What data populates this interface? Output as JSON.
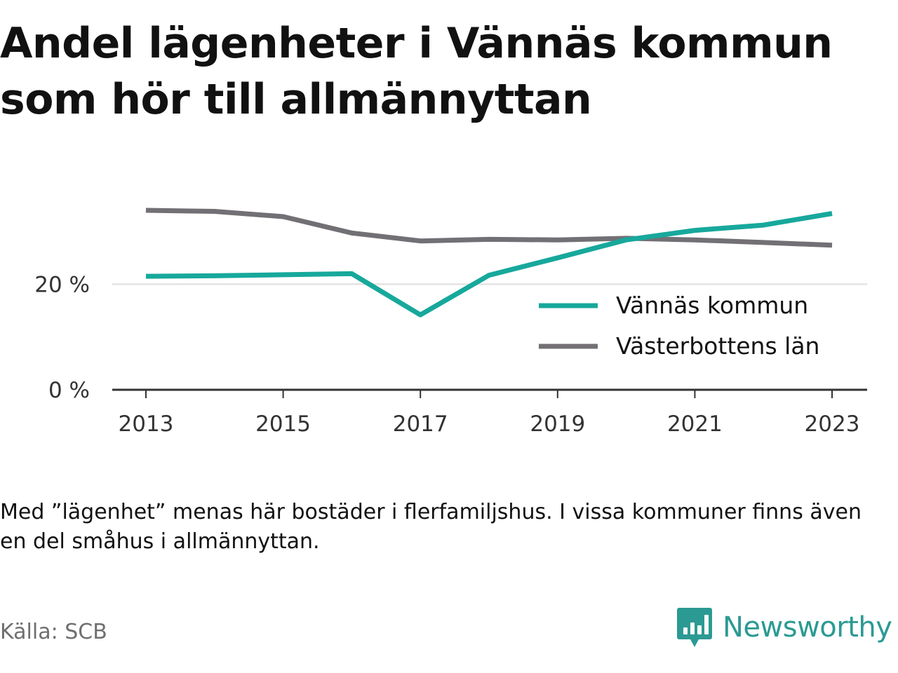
{
  "title": "Andel lägenheter i Vännäs kommun som hör till allmännyttan",
  "note": "Med ”lägenhet” menas här bostäder i flerfamiljshus. I vissa kommuner finns även en del småhus i allmännyttan.",
  "source": "Källa: SCB",
  "brand": {
    "name": "Newsworthy",
    "icon": "newsworthy-logo-icon",
    "color": "#2b9a93"
  },
  "chart_data": {
    "type": "line",
    "title": "Andel lägenheter i Vännäs kommun som hör till allmännyttan",
    "x": [
      2013,
      2014,
      2015,
      2016,
      2017,
      2018,
      2019,
      2020,
      2021,
      2022,
      2023
    ],
    "x_ticks": [
      "2013",
      "2015",
      "2017",
      "2019",
      "2021",
      "2023"
    ],
    "y_ticks": [
      {
        "value": 0,
        "label": "0 %"
      },
      {
        "value": 20,
        "label": "20 %"
      }
    ],
    "ylim": [
      0,
      34
    ],
    "grid": "horizontal",
    "legend_placement": "lower-right",
    "series": [
      {
        "name": "Vännäs kommun",
        "color": "#17a89c",
        "values": [
          21.5,
          21.6,
          21.8,
          22.0,
          14.2,
          21.7,
          25.0,
          28.4,
          30.2,
          31.2,
          33.4
        ]
      },
      {
        "name": "Västerbottens län",
        "color": "#727075",
        "values": [
          34.0,
          33.8,
          32.8,
          29.7,
          28.2,
          28.5,
          28.4,
          28.7,
          28.4,
          27.9,
          27.4
        ]
      }
    ]
  }
}
